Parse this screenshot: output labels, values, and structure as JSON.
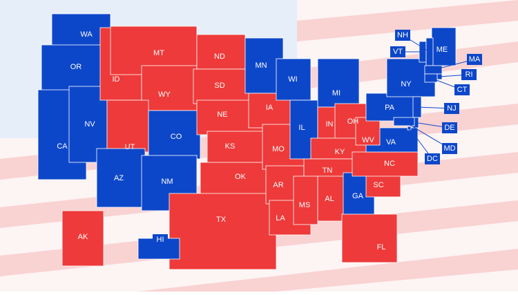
{
  "states": [
    {
      "label": "WA",
      "color": "#0d47c9"
    },
    {
      "label": "OR",
      "color": "#0d47c9"
    },
    {
      "label": "CA",
      "color": "#0d47c9"
    },
    {
      "label": "NV",
      "color": "#0d47c9"
    },
    {
      "label": "ID",
      "color": "#ee3a3a"
    },
    {
      "label": "MT",
      "color": "#ee3a3a"
    },
    {
      "label": "WY",
      "color": "#ee3a3a"
    },
    {
      "label": "UT",
      "color": "#ee3a3a"
    },
    {
      "label": "CO",
      "color": "#0d47c9"
    },
    {
      "label": "AZ",
      "color": "#0d47c9"
    },
    {
      "label": "NM",
      "color": "#0d47c9"
    },
    {
      "label": "ND",
      "color": "#ee3a3a"
    },
    {
      "label": "SD",
      "color": "#ee3a3a"
    },
    {
      "label": "NE",
      "color": "#ee3a3a"
    },
    {
      "label": "KS",
      "color": "#ee3a3a"
    },
    {
      "label": "OK",
      "color": "#ee3a3a"
    },
    {
      "label": "TX",
      "color": "#ee3a3a"
    },
    {
      "label": "MN",
      "color": "#0d47c9"
    },
    {
      "label": "IA",
      "color": "#ee3a3a"
    },
    {
      "label": "MO",
      "color": "#ee3a3a"
    },
    {
      "label": "AR",
      "color": "#ee3a3a"
    },
    {
      "label": "LA",
      "color": "#ee3a3a"
    },
    {
      "label": "WI",
      "color": "#0d47c9"
    },
    {
      "label": "IL",
      "color": "#0d47c9"
    },
    {
      "label": "MI",
      "color": "#0d47c9"
    },
    {
      "label": "IN",
      "color": "#ee3a3a"
    },
    {
      "label": "OH",
      "color": "#ee3a3a"
    },
    {
      "label": "KY",
      "color": "#ee3a3a"
    },
    {
      "label": "TN",
      "color": "#ee3a3a"
    },
    {
      "label": "MS",
      "color": "#ee3a3a"
    },
    {
      "label": "AL",
      "color": "#ee3a3a"
    },
    {
      "label": "GA",
      "color": "#0d47c9"
    },
    {
      "label": "FL",
      "color": "#ee3a3a"
    },
    {
      "label": "SC",
      "color": "#ee3a3a"
    },
    {
      "label": "NC",
      "color": "#ee3a3a"
    },
    {
      "label": "VA",
      "color": "#0d47c9"
    },
    {
      "label": "WV",
      "color": "#ee3a3a"
    },
    {
      "label": "PA",
      "color": "#0d47c9"
    },
    {
      "label": "NY",
      "color": "#0d47c9"
    },
    {
      "label": "ME",
      "color": "#0d47c9"
    },
    {
      "label": "VT",
      "color": "#0d47c9"
    },
    {
      "label": "NH",
      "color": "#0d47c9"
    },
    {
      "label": "MA",
      "color": "#0d47c9"
    },
    {
      "label": "RI",
      "color": "#0d47c9"
    },
    {
      "label": "CT",
      "color": "#0d47c9"
    },
    {
      "label": "NJ",
      "color": "#0d47c9"
    },
    {
      "label": "DE",
      "color": "#0d47c9"
    },
    {
      "label": "MD",
      "color": "#0d47c9"
    },
    {
      "label": "DC",
      "color": "#0d47c9"
    },
    {
      "label": "AK",
      "color": "#ee3a3a"
    },
    {
      "label": "HI",
      "color": "#0d47c9"
    }
  ]
}
